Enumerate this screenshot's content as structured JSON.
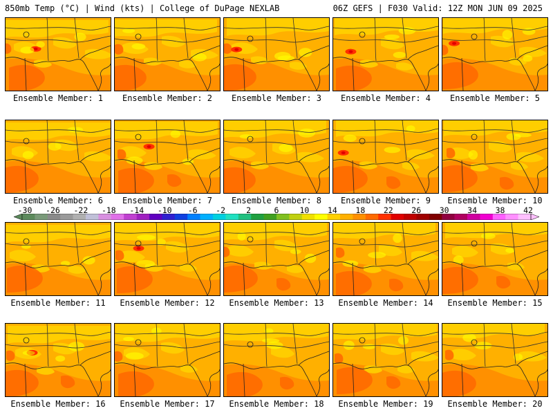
{
  "header": {
    "left": "850mb Temp (°C) | Wind (kts) | College of DuPage NEXLAB",
    "right": "06Z GEFS | F030 Valid: 12Z MON JUN 09 2025"
  },
  "members": [
    {
      "caption": "Ensemble Member: 1"
    },
    {
      "caption": "Ensemble Member: 2"
    },
    {
      "caption": "Ensemble Member: 3"
    },
    {
      "caption": "Ensemble Member: 4"
    },
    {
      "caption": "Ensemble Member: 5"
    },
    {
      "caption": "Ensemble Member: 6"
    },
    {
      "caption": "Ensemble Member: 7"
    },
    {
      "caption": "Ensemble Member: 8"
    },
    {
      "caption": "Ensemble Member: 9"
    },
    {
      "caption": "Ensemble Member: 10"
    },
    {
      "caption": "Ensemble Member: 11"
    },
    {
      "caption": "Ensemble Member: 12"
    },
    {
      "caption": "Ensemble Member: 13"
    },
    {
      "caption": "Ensemble Member: 14"
    },
    {
      "caption": "Ensemble Member: 15"
    },
    {
      "caption": "Ensemble Member: 16"
    },
    {
      "caption": "Ensemble Member: 17"
    },
    {
      "caption": "Ensemble Member: 18"
    },
    {
      "caption": "Ensemble Member: 19"
    },
    {
      "caption": "Ensemble Member: 20"
    }
  ],
  "colorbar": {
    "tick_labels": [
      "-30",
      "-26",
      "-22",
      "-18",
      "-14",
      "-10",
      "-6",
      "-2",
      "2",
      "6",
      "10",
      "14",
      "18",
      "22",
      "26",
      "30",
      "34",
      "38",
      "42"
    ],
    "colors": [
      "#5c8a5c",
      "#7a9a7a",
      "#8a8a8a",
      "#9a9a9a",
      "#b0b0b0",
      "#c0c0d8",
      "#d890e0",
      "#e070e8",
      "#c040d0",
      "#a020c0",
      "#6000c0",
      "#3020d0",
      "#1040e0",
      "#0080ff",
      "#00b0ff",
      "#00d0e0",
      "#20e0c0",
      "#20c080",
      "#20a040",
      "#40a020",
      "#80c020",
      "#c0d010",
      "#f0e000",
      "#ffff00",
      "#ffd000",
      "#ffb000",
      "#ff9000",
      "#ff6a00",
      "#ff3000",
      "#e00000",
      "#c00000",
      "#a00000",
      "#800000",
      "#900040",
      "#b00060",
      "#d000a0",
      "#f000d0",
      "#ff60ff",
      "#ff90ff",
      "#ffc0ff"
    ]
  }
}
